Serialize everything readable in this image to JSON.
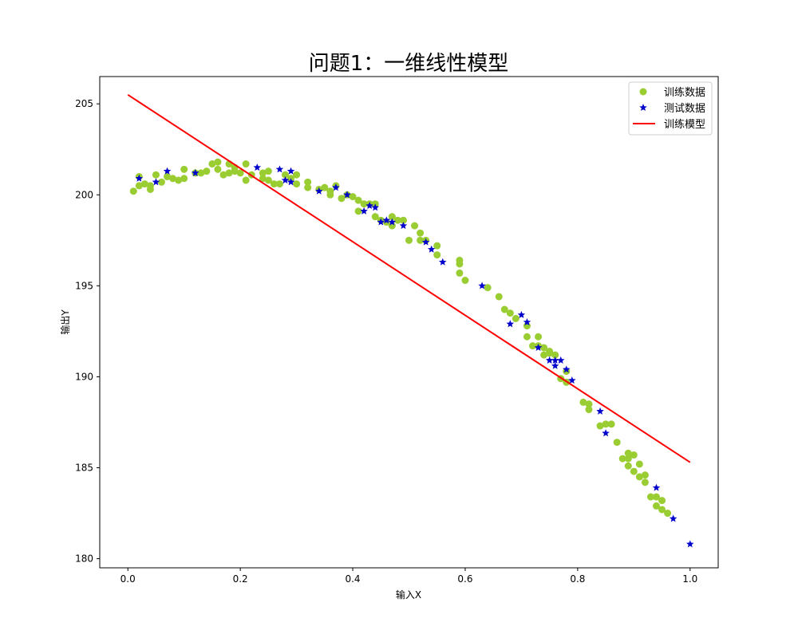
{
  "chart_data": {
    "type": "scatter",
    "title": "问题1：一维线性模型",
    "xlabel": "输入X",
    "ylabel": "输出Y",
    "xlim": [
      -0.05,
      1.05
    ],
    "ylim": [
      179.5,
      206.5
    ],
    "xticks": [
      0.0,
      0.2,
      0.4,
      0.6,
      0.8,
      1.0
    ],
    "xtick_labels": [
      "0.0",
      "0.2",
      "0.4",
      "0.6",
      "0.8",
      "1.0"
    ],
    "yticks": [
      180,
      185,
      190,
      195,
      200,
      205
    ],
    "ytick_labels": [
      "180",
      "185",
      "190",
      "195",
      "200",
      "205"
    ],
    "grid": false,
    "legend_position": "top-right",
    "series": [
      {
        "name": "训练数据",
        "kind": "scatter",
        "marker": "circle",
        "color": "#9acd32",
        "points": [
          [
            0.01,
            200.2
          ],
          [
            0.02,
            201.0
          ],
          [
            0.02,
            200.5
          ],
          [
            0.03,
            200.6
          ],
          [
            0.04,
            200.5
          ],
          [
            0.04,
            200.3
          ],
          [
            0.05,
            201.1
          ],
          [
            0.06,
            200.7
          ],
          [
            0.07,
            201.0
          ],
          [
            0.08,
            200.9
          ],
          [
            0.09,
            200.8
          ],
          [
            0.1,
            201.4
          ],
          [
            0.1,
            200.9
          ],
          [
            0.12,
            201.2
          ],
          [
            0.13,
            201.2
          ],
          [
            0.14,
            201.3
          ],
          [
            0.15,
            201.7
          ],
          [
            0.16,
            201.8
          ],
          [
            0.16,
            201.4
          ],
          [
            0.17,
            201.1
          ],
          [
            0.18,
            201.7
          ],
          [
            0.18,
            201.2
          ],
          [
            0.19,
            201.5
          ],
          [
            0.19,
            201.3
          ],
          [
            0.2,
            201.2
          ],
          [
            0.21,
            201.7
          ],
          [
            0.21,
            200.8
          ],
          [
            0.22,
            201.1
          ],
          [
            0.24,
            201.2
          ],
          [
            0.24,
            200.9
          ],
          [
            0.25,
            201.3
          ],
          [
            0.25,
            200.8
          ],
          [
            0.26,
            200.6
          ],
          [
            0.27,
            200.6
          ],
          [
            0.28,
            201.1
          ],
          [
            0.29,
            200.9
          ],
          [
            0.3,
            201.1
          ],
          [
            0.3,
            200.6
          ],
          [
            0.32,
            200.7
          ],
          [
            0.32,
            200.4
          ],
          [
            0.34,
            200.3
          ],
          [
            0.35,
            200.4
          ],
          [
            0.36,
            200.2
          ],
          [
            0.36,
            200.0
          ],
          [
            0.37,
            200.5
          ],
          [
            0.38,
            199.8
          ],
          [
            0.39,
            200.0
          ],
          [
            0.4,
            199.9
          ],
          [
            0.41,
            199.7
          ],
          [
            0.41,
            199.1
          ],
          [
            0.42,
            199.5
          ],
          [
            0.43,
            199.5
          ],
          [
            0.44,
            199.5
          ],
          [
            0.44,
            198.8
          ],
          [
            0.45,
            198.6
          ],
          [
            0.46,
            198.5
          ],
          [
            0.47,
            198.8
          ],
          [
            0.47,
            198.3
          ],
          [
            0.48,
            198.6
          ],
          [
            0.49,
            198.6
          ],
          [
            0.5,
            197.5
          ],
          [
            0.51,
            198.3
          ],
          [
            0.52,
            197.9
          ],
          [
            0.52,
            197.5
          ],
          [
            0.53,
            197.5
          ],
          [
            0.55,
            197.2
          ],
          [
            0.55,
            196.7
          ],
          [
            0.59,
            196.4
          ],
          [
            0.59,
            196.2
          ],
          [
            0.59,
            195.7
          ],
          [
            0.6,
            195.3
          ],
          [
            0.64,
            194.9
          ],
          [
            0.66,
            194.4
          ],
          [
            0.67,
            193.7
          ],
          [
            0.68,
            193.5
          ],
          [
            0.69,
            193.2
          ],
          [
            0.71,
            192.8
          ],
          [
            0.71,
            192.2
          ],
          [
            0.72,
            191.7
          ],
          [
            0.73,
            192.2
          ],
          [
            0.73,
            191.7
          ],
          [
            0.74,
            191.6
          ],
          [
            0.74,
            191.2
          ],
          [
            0.75,
            191.4
          ],
          [
            0.75,
            191.3
          ],
          [
            0.76,
            191.2
          ],
          [
            0.77,
            189.9
          ],
          [
            0.78,
            189.7
          ],
          [
            0.78,
            190.3
          ],
          [
            0.81,
            188.6
          ],
          [
            0.82,
            188.5
          ],
          [
            0.82,
            188.2
          ],
          [
            0.84,
            187.3
          ],
          [
            0.85,
            187.4
          ],
          [
            0.86,
            187.4
          ],
          [
            0.87,
            186.4
          ],
          [
            0.88,
            185.5
          ],
          [
            0.89,
            185.8
          ],
          [
            0.89,
            185.1
          ],
          [
            0.89,
            185.5
          ],
          [
            0.9,
            185.7
          ],
          [
            0.9,
            184.8
          ],
          [
            0.91,
            185.2
          ],
          [
            0.91,
            184.5
          ],
          [
            0.92,
            184.2
          ],
          [
            0.92,
            184.6
          ],
          [
            0.93,
            183.4
          ],
          [
            0.94,
            183.4
          ],
          [
            0.94,
            182.9
          ],
          [
            0.95,
            183.2
          ],
          [
            0.95,
            182.7
          ],
          [
            0.96,
            182.5
          ]
        ]
      },
      {
        "name": "测试数据",
        "kind": "scatter",
        "marker": "star",
        "color": "#0000cc",
        "points": [
          [
            0.02,
            200.9
          ],
          [
            0.05,
            200.7
          ],
          [
            0.07,
            201.3
          ],
          [
            0.12,
            201.2
          ],
          [
            0.23,
            201.5
          ],
          [
            0.27,
            201.4
          ],
          [
            0.28,
            200.8
          ],
          [
            0.29,
            201.3
          ],
          [
            0.29,
            200.7
          ],
          [
            0.34,
            200.2
          ],
          [
            0.37,
            200.4
          ],
          [
            0.39,
            200.0
          ],
          [
            0.42,
            199.1
          ],
          [
            0.43,
            199.4
          ],
          [
            0.44,
            199.3
          ],
          [
            0.45,
            198.5
          ],
          [
            0.46,
            198.6
          ],
          [
            0.47,
            198.5
          ],
          [
            0.49,
            198.3
          ],
          [
            0.53,
            197.4
          ],
          [
            0.54,
            197.0
          ],
          [
            0.56,
            196.3
          ],
          [
            0.63,
            195.0
          ],
          [
            0.68,
            192.9
          ],
          [
            0.7,
            193.4
          ],
          [
            0.71,
            193.0
          ],
          [
            0.73,
            191.6
          ],
          [
            0.75,
            190.9
          ],
          [
            0.76,
            190.6
          ],
          [
            0.76,
            190.9
          ],
          [
            0.77,
            190.9
          ],
          [
            0.78,
            190.4
          ],
          [
            0.79,
            189.8
          ],
          [
            0.84,
            188.1
          ],
          [
            0.85,
            186.9
          ],
          [
            0.94,
            183.9
          ],
          [
            0.97,
            182.2
          ],
          [
            1.0,
            180.8
          ]
        ]
      },
      {
        "name": "训练模型",
        "kind": "line",
        "color": "#ff0000",
        "points": [
          [
            0.0,
            205.5
          ],
          [
            1.0,
            185.3
          ]
        ]
      }
    ]
  }
}
